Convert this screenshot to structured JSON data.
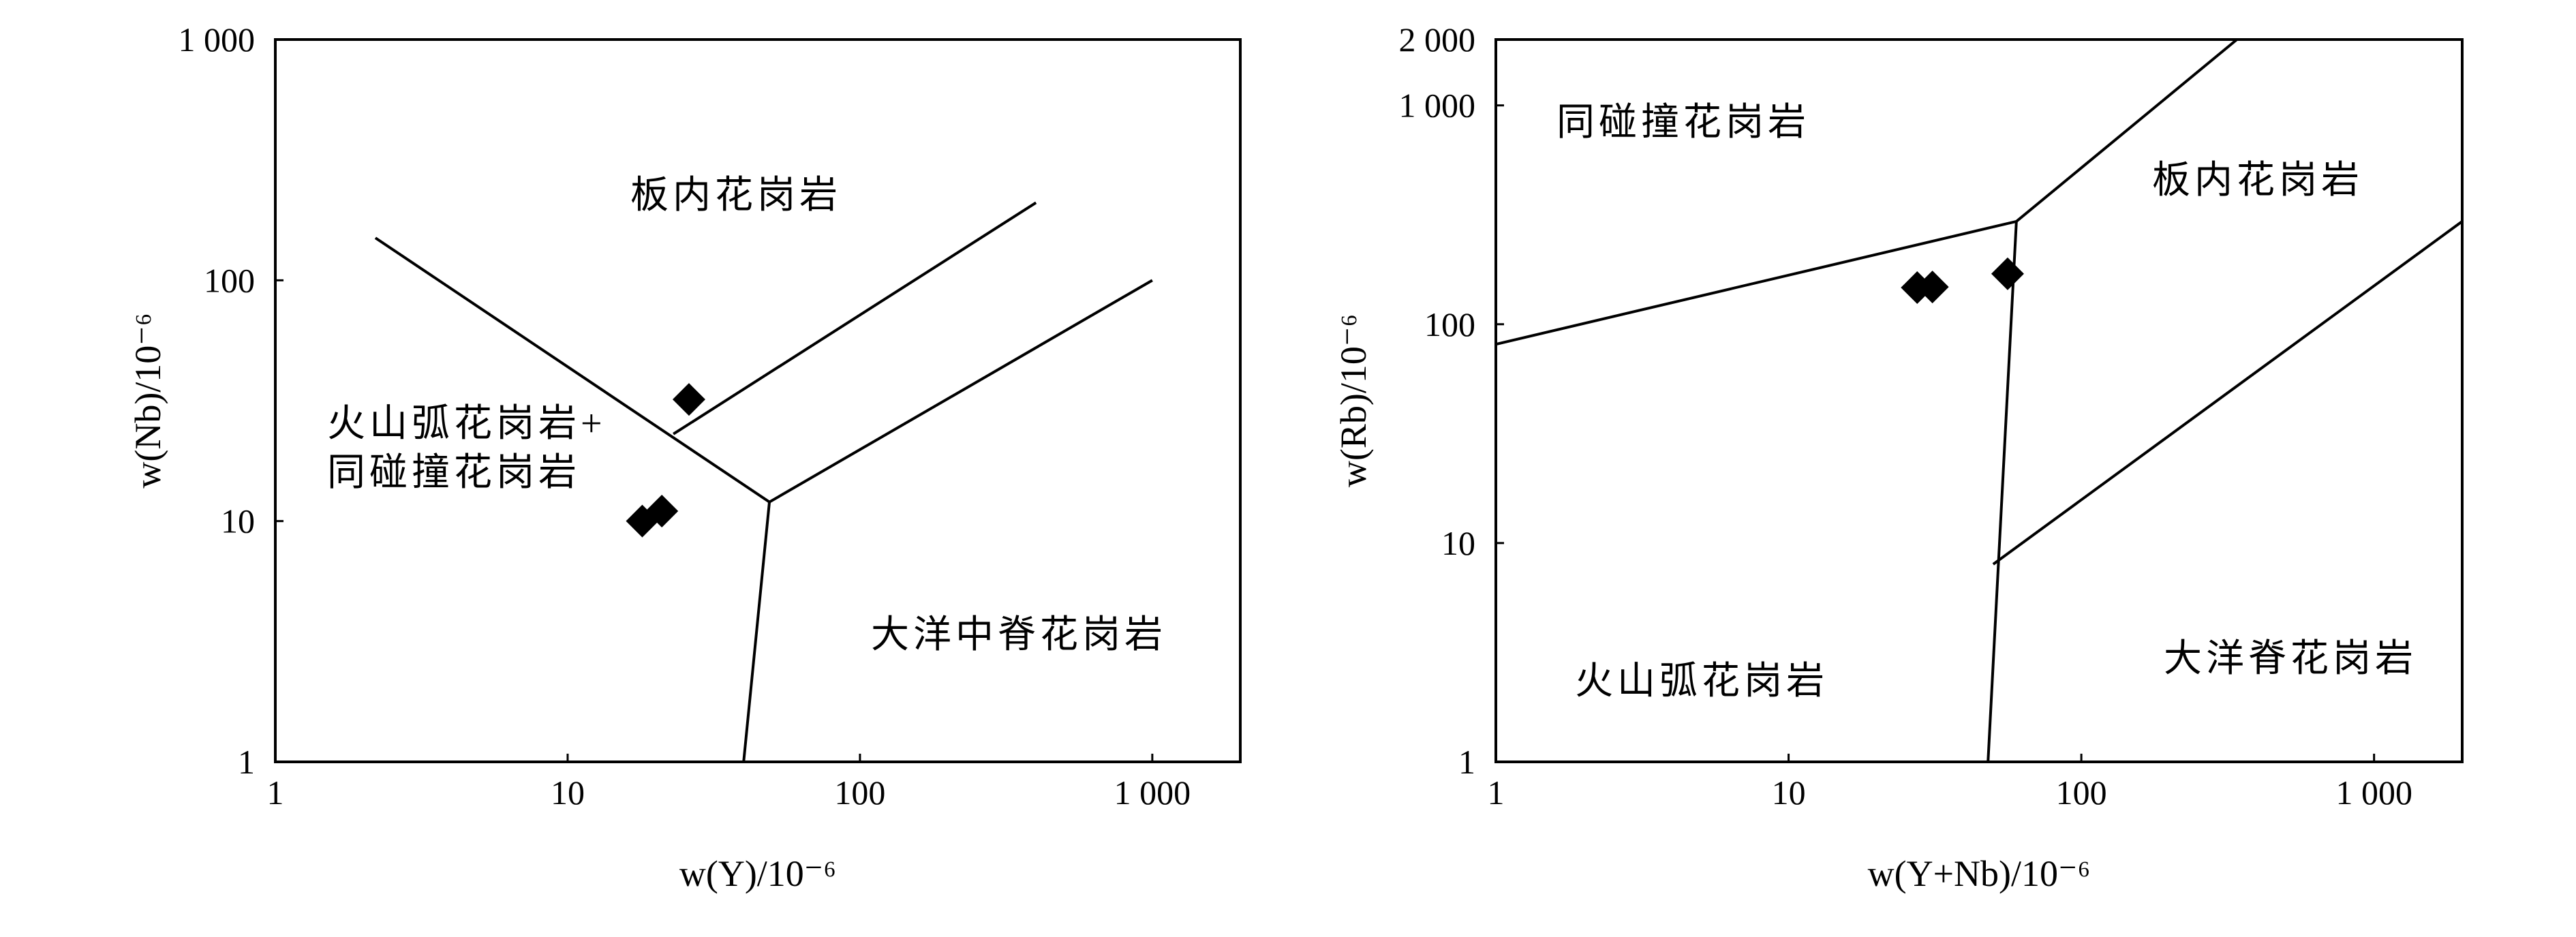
{
  "chart_data": [
    {
      "type": "scatter",
      "log_x": true,
      "log_y": true,
      "grid": false,
      "color": "#000000",
      "xlabel": "w(Y)/10⁻⁶",
      "ylabel": "w(Nb)/10⁻⁶",
      "xlim": [
        1,
        2000
      ],
      "ylim": [
        1,
        1000
      ],
      "xticks": [
        1,
        10,
        100,
        {
          "value": 1000,
          "label": "1 000"
        }
      ],
      "yticks": [
        1,
        10,
        100,
        {
          "value": 1000,
          "label": "1 000"
        }
      ],
      "x": [
        26,
        18,
        21
      ],
      "values": [
        32,
        10,
        11
      ],
      "boundaries": [
        {
          "x": [
            2.2,
            49,
            1000
          ],
          "y": [
            150,
            12,
            100
          ]
        },
        {
          "x": [
            49,
            40
          ],
          "y": [
            12,
            1
          ]
        },
        {
          "x": [
            23,
            400
          ],
          "y": [
            23,
            210
          ]
        }
      ],
      "annotations": [
        "板内花岗岩",
        "火山弧花岗岩+",
        "同碰撞花岗岩",
        "大洋中脊花岗岩"
      ]
    },
    {
      "type": "scatter",
      "log_x": true,
      "log_y": true,
      "grid": false,
      "color": "#000000",
      "xlabel": "w(Y+Nb)/10⁻⁶",
      "ylabel": "w(Rb)/10⁻⁶",
      "xlim": [
        1,
        2000
      ],
      "ylim": [
        1,
        2000
      ],
      "xticks": [
        1,
        10,
        100,
        {
          "value": 1000,
          "label": "1 000"
        }
      ],
      "yticks": [
        1,
        10,
        100,
        {
          "value": 1000,
          "label": "1 000"
        },
        {
          "value": 2000,
          "label": "2 000"
        }
      ],
      "x": [
        27.5,
        31,
        56
      ],
      "values": [
        147,
        148,
        170
      ],
      "boundaries": [
        {
          "x": [
            1,
            60,
            340
          ],
          "y": [
            81,
            295,
            2000
          ]
        },
        {
          "x": [
            60,
            48
          ],
          "y": [
            295,
            1
          ]
        },
        {
          "x": [
            50,
            2000
          ],
          "y": [
            8,
            295
          ]
        }
      ],
      "annotations": [
        "同碰撞花岗岩",
        "板内花岗岩",
        "火山弧花岗岩",
        "大洋脊花岗岩"
      ]
    }
  ]
}
